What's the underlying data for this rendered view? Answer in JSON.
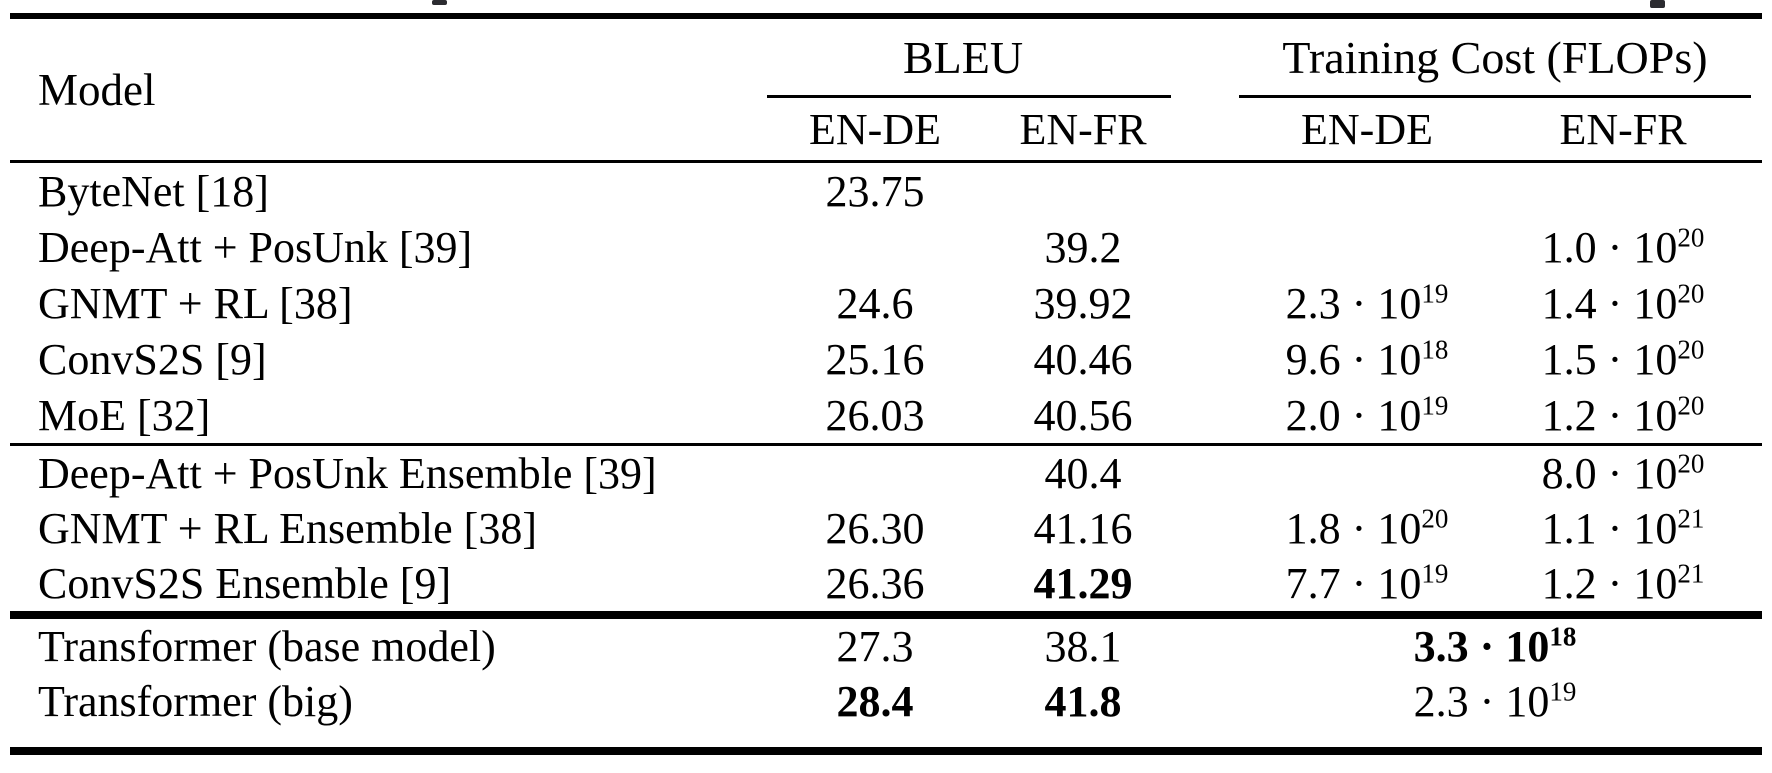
{
  "header": {
    "model_label": "Model",
    "groups": [
      {
        "label": "BLEU",
        "sub": [
          "EN-DE",
          "EN-FR"
        ]
      },
      {
        "label": "Training Cost (FLOPs)",
        "sub": [
          "EN-DE",
          "EN-FR"
        ]
      }
    ]
  },
  "sections": [
    {
      "rows": [
        {
          "model": "ByteNet [18]",
          "cells": [
            {
              "text": "23.75"
            },
            {},
            {},
            {}
          ]
        },
        {
          "model": "Deep-Att + PosUnk [39]",
          "cells": [
            {},
            {
              "text": "39.2"
            },
            {},
            {
              "base": "1.0 · 10",
              "exp": "20"
            }
          ]
        },
        {
          "model": "GNMT + RL [38]",
          "cells": [
            {
              "text": "24.6"
            },
            {
              "text": "39.92"
            },
            {
              "base": "2.3 · 10",
              "exp": "19"
            },
            {
              "base": "1.4 · 10",
              "exp": "20"
            }
          ]
        },
        {
          "model": "ConvS2S [9]",
          "cells": [
            {
              "text": "25.16"
            },
            {
              "text": "40.46"
            },
            {
              "base": "9.6 · 10",
              "exp": "18"
            },
            {
              "base": "1.5 · 10",
              "exp": "20"
            }
          ]
        },
        {
          "model": "MoE [32]",
          "cells": [
            {
              "text": "26.03"
            },
            {
              "text": "40.56"
            },
            {
              "base": "2.0 · 10",
              "exp": "19"
            },
            {
              "base": "1.2 · 10",
              "exp": "20"
            }
          ]
        }
      ]
    },
    {
      "rows": [
        {
          "model": "Deep-Att + PosUnk Ensemble [39]",
          "cells": [
            {},
            {
              "text": "40.4"
            },
            {},
            {
              "base": "8.0 · 10",
              "exp": "20"
            }
          ]
        },
        {
          "model": "GNMT + RL Ensemble [38]",
          "cells": [
            {
              "text": "26.30"
            },
            {
              "text": "41.16"
            },
            {
              "base": "1.8 · 10",
              "exp": "20"
            },
            {
              "base": "1.1 · 10",
              "exp": "21"
            }
          ]
        },
        {
          "model": "ConvS2S Ensemble [9]",
          "cells": [
            {
              "text": "26.36"
            },
            {
              "text": "41.29",
              "bold": true
            },
            {
              "base": "7.7 · 10",
              "exp": "19"
            },
            {
              "base": "1.2 · 10",
              "exp": "21"
            }
          ]
        }
      ]
    },
    {
      "rows": [
        {
          "model": "Transformer (base model)",
          "cells": [
            {
              "text": "27.3"
            },
            {
              "text": "38.1"
            },
            {
              "base": "3.3 · 10",
              "exp": "18",
              "bold": true,
              "span": 2
            }
          ]
        },
        {
          "model": "Transformer (big)",
          "cells": [
            {
              "text": "28.4",
              "bold": true
            },
            {
              "text": "41.8",
              "bold": true
            },
            {
              "base": "2.3 · 10",
              "exp": "19",
              "span": 2
            }
          ]
        }
      ]
    }
  ]
}
